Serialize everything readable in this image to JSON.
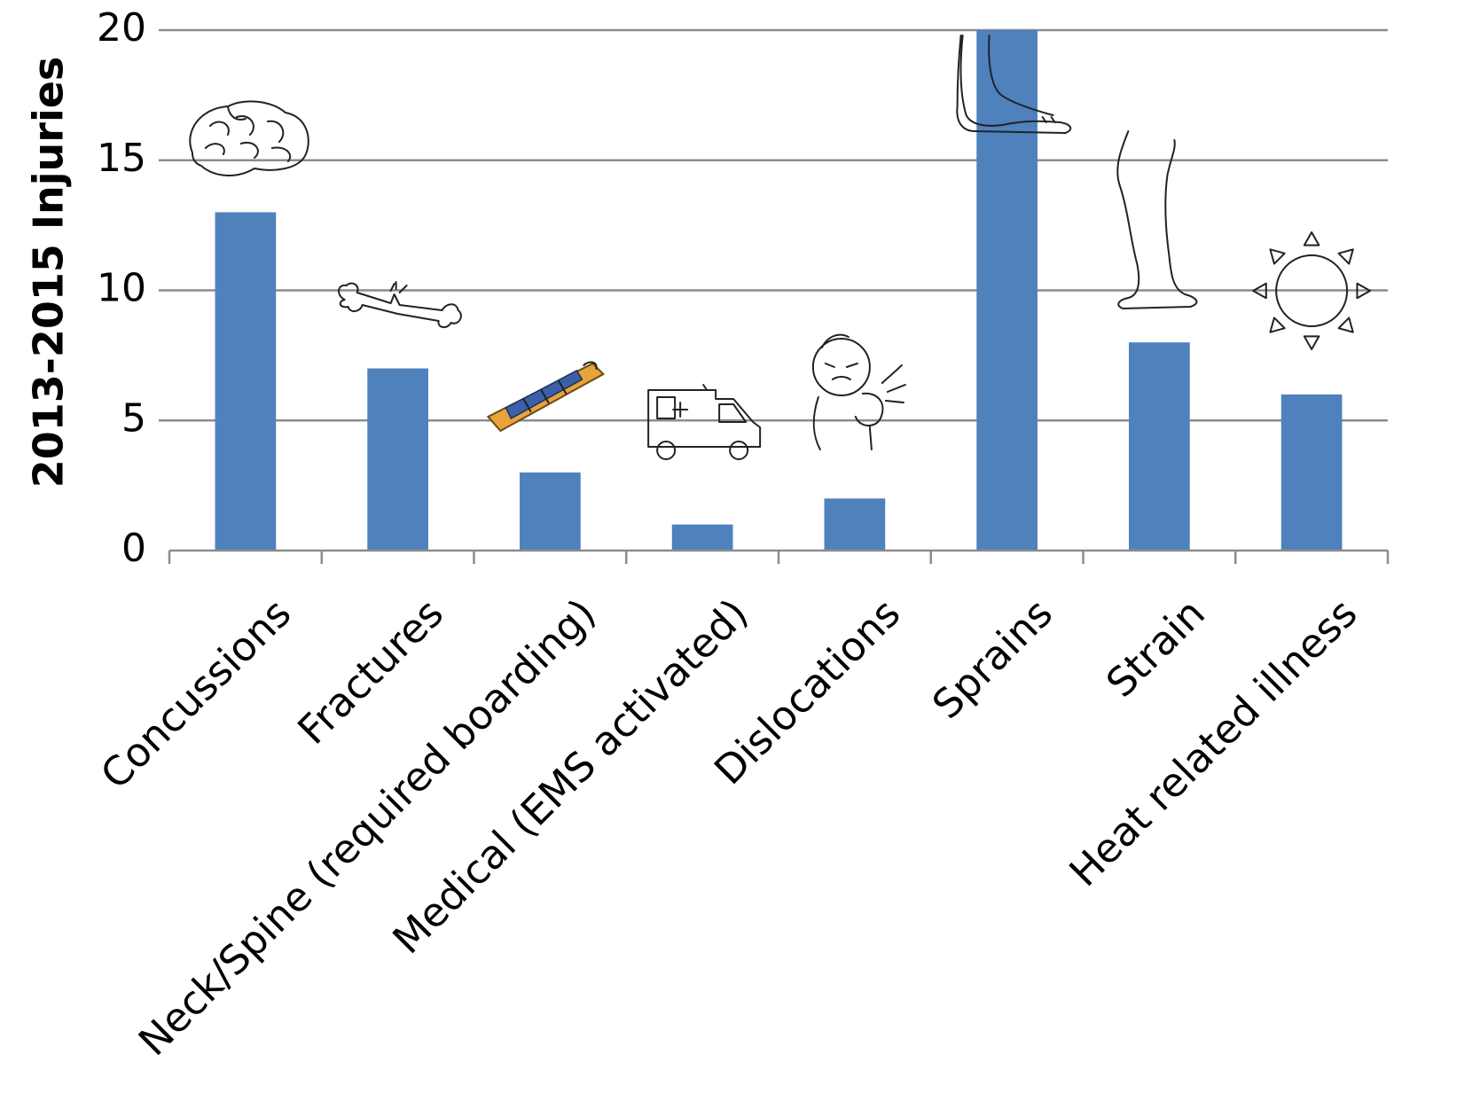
{
  "chart_data": {
    "type": "bar",
    "title": "",
    "xlabel": "",
    "ylabel": "2013-2015 Injuries",
    "ylim": [
      0,
      20
    ],
    "yticks": [
      0,
      5,
      10,
      15,
      20
    ],
    "grid": true,
    "bar_color": "#4f81bd",
    "categories": [
      "Concussions",
      "Fractures",
      "Neck/Spine (required boarding)",
      "Medical (EMS activated)",
      "Dislocations",
      "Sprains",
      "Strain",
      "Heat related illness"
    ],
    "values": [
      13,
      7,
      3,
      1,
      2,
      20,
      8,
      6
    ],
    "icons": [
      "brain-icon",
      "broken-bone-icon",
      "spine-board-icon",
      "ambulance-icon",
      "shoulder-pain-icon",
      "foot-icon",
      "leg-icon",
      "sun-icon"
    ]
  }
}
